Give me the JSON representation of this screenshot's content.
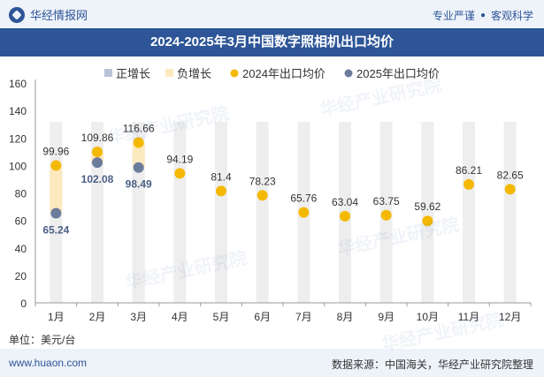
{
  "header": {
    "brand": "华经情报网",
    "tag1": "专业严谨",
    "tag2": "客观科学"
  },
  "title": "2024-2025年3月中国数字照相机出口均价",
  "unit": "单位：美元/台",
  "footer": {
    "site": "www.huaon.com",
    "source": "数据来源：中国海关，华经产业研究院整理"
  },
  "watermark": "华经产业研究院",
  "colors": {
    "series2024": "#f5b800",
    "series2025": "#6b7b9c",
    "bar": "#eeeeee",
    "positive": "#b9c4d6",
    "negative": "#fde9bf"
  },
  "chart_data": {
    "type": "line",
    "categories": [
      "1月",
      "2月",
      "3月",
      "4月",
      "5月",
      "6月",
      "7月",
      "8月",
      "9月",
      "10月",
      "11月",
      "12月"
    ],
    "legend": [
      "正增长",
      "负增长",
      "2024年出口均价",
      "2025年出口均价"
    ],
    "series": [
      {
        "name": "2024年出口均价",
        "values": [
          99.96,
          109.86,
          116.66,
          94.19,
          81.4,
          78.23,
          65.76,
          63.04,
          63.75,
          59.62,
          86.21,
          82.65
        ]
      },
      {
        "name": "2025年出口均价",
        "values": [
          65.24,
          102.08,
          98.49,
          null,
          null,
          null,
          null,
          null,
          null,
          null,
          null,
          null
        ]
      }
    ],
    "ylim": [
      0,
      160
    ],
    "yticks": [
      0,
      20,
      40,
      60,
      80,
      100,
      120,
      140,
      160
    ],
    "legend_position": "top",
    "grid": false
  }
}
